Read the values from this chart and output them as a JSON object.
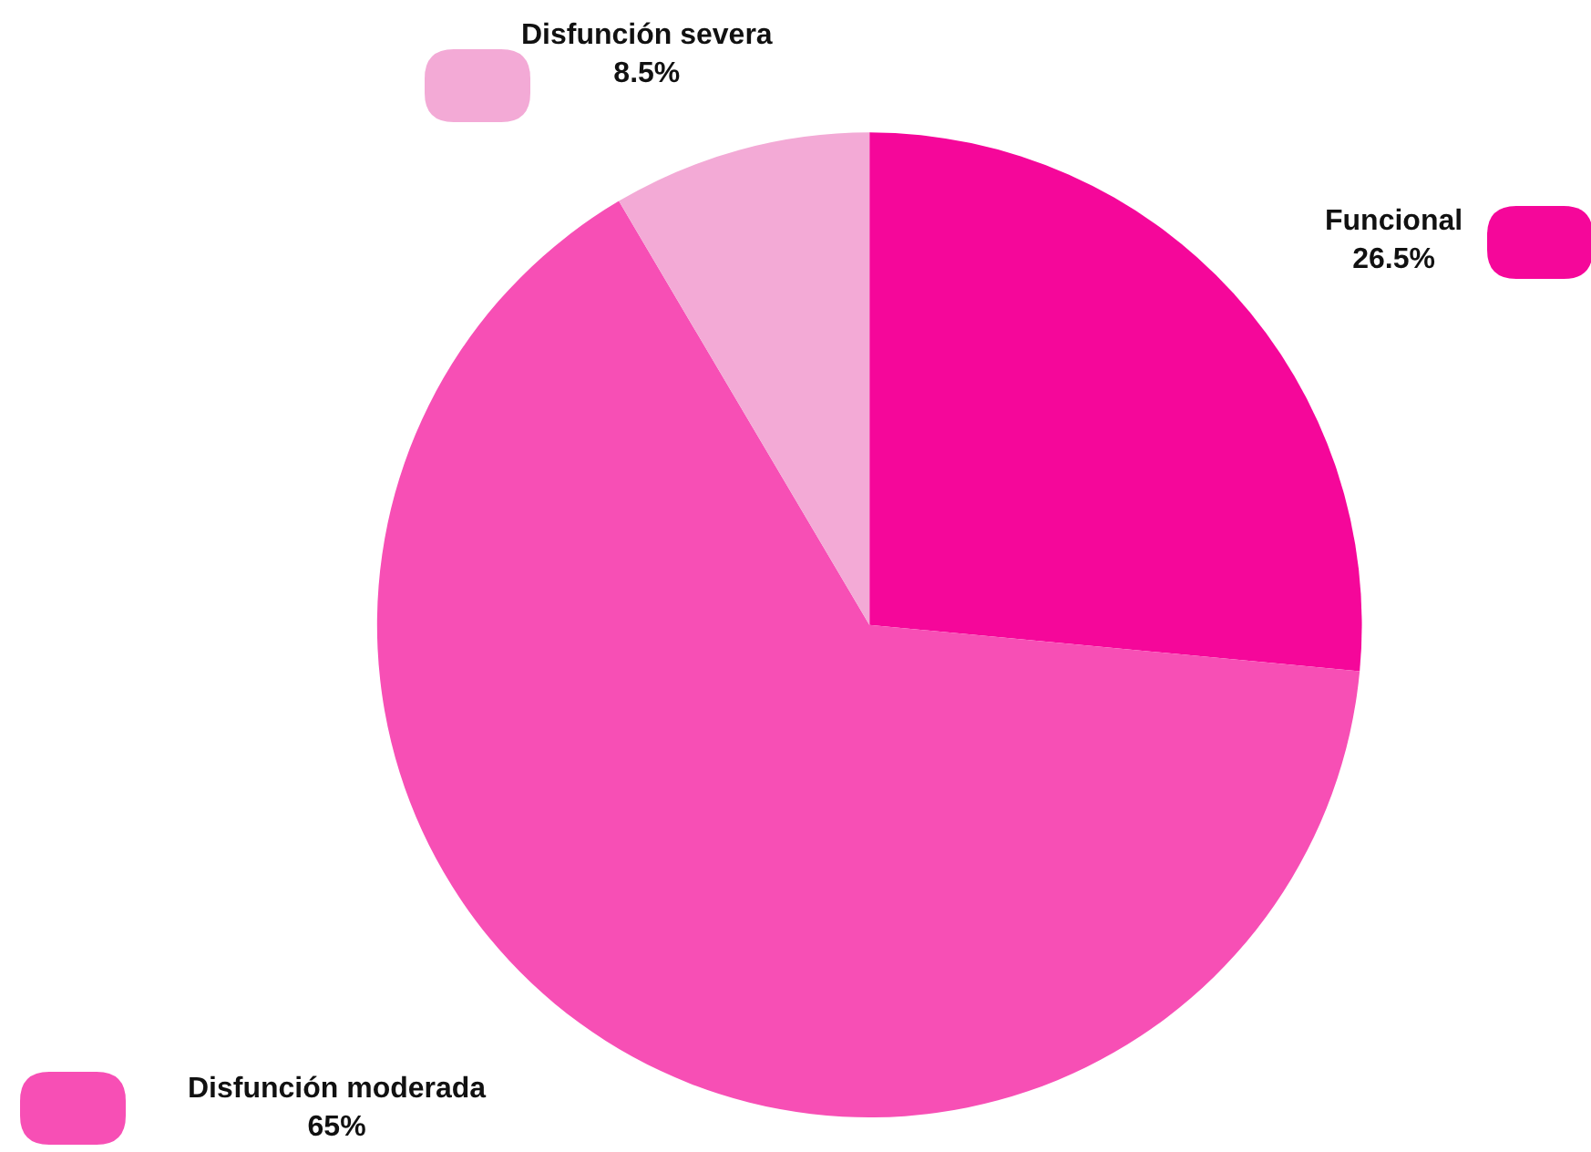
{
  "chart_data": {
    "type": "pie",
    "categories": [
      "Funcional",
      "Disfunción moderada",
      "Disfunción severa"
    ],
    "values": [
      26.5,
      65,
      8.5
    ],
    "value_labels": [
      "26.5%",
      "65%",
      "8.5%"
    ],
    "colors": [
      "#f5079a",
      "#f74fb5",
      "#f3aad6"
    ]
  }
}
